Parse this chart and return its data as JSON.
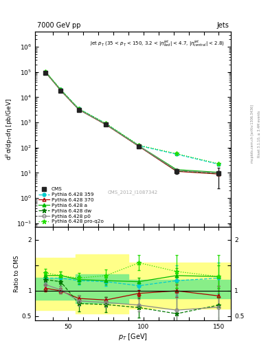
{
  "title_left": "7000 GeV pp",
  "title_right": "Jets",
  "watermark": "CMS_2012_I1087342",
  "pt_values": [
    35,
    45,
    57,
    75,
    97,
    122,
    150
  ],
  "cms_values": [
    95000.0,
    18500.0,
    3200,
    820,
    115,
    11.5,
    9.5
  ],
  "cms_yerr_lo": [
    12000.0,
    2000,
    350,
    90,
    15,
    2.5,
    7
  ],
  "cms_yerr_hi": [
    12000.0,
    2000,
    350,
    90,
    15,
    2.5,
    7
  ],
  "pythia359_values": [
    100000.0,
    20000.0,
    3500,
    900,
    120,
    55,
    22
  ],
  "pythia370_values": [
    98000.0,
    18500.0,
    3250,
    820,
    112,
    11.5,
    9.0
  ],
  "pythia_a_values": [
    101000.0,
    19500.0,
    3350,
    860,
    118,
    13.5,
    10.5
  ],
  "pythia_dw_values": [
    97000.0,
    19000.0,
    3300,
    840,
    115,
    12,
    9.5
  ],
  "pythia_p0_values": [
    99000.0,
    19200.0,
    3320,
    850,
    116,
    12.5,
    10
  ],
  "pythia_proq2o_values": [
    103000.0,
    20200.0,
    3550,
    920,
    125,
    58,
    23
  ],
  "ratio_359": [
    1.25,
    1.25,
    1.2,
    1.18,
    1.1,
    1.2,
    1.25
  ],
  "ratio_370": [
    1.05,
    1.0,
    0.85,
    0.82,
    0.95,
    1.0,
    0.9
  ],
  "ratio_a": [
    1.3,
    1.3,
    1.22,
    1.2,
    1.18,
    1.3,
    1.28
  ],
  "ratio_dw": [
    1.22,
    1.18,
    0.75,
    0.73,
    0.67,
    0.55,
    0.72
  ],
  "ratio_p0": [
    1.12,
    1.02,
    0.8,
    0.77,
    0.72,
    0.62,
    0.68
  ],
  "ratio_proq2o": [
    1.35,
    1.3,
    1.25,
    1.3,
    1.55,
    1.38,
    1.28
  ],
  "ratio_err_359": [
    0.08,
    0.08,
    0.08,
    0.08,
    0.08,
    0.3,
    0.3
  ],
  "ratio_err_370": [
    0.06,
    0.06,
    0.06,
    0.06,
    0.06,
    0.12,
    0.2
  ],
  "ratio_err_a": [
    0.08,
    0.08,
    0.08,
    0.08,
    0.08,
    0.14,
    0.22
  ],
  "ratio_err_dw": [
    0.08,
    0.08,
    0.15,
    0.15,
    0.2,
    0.5,
    0.55
  ],
  "ratio_err_p0": [
    0.08,
    0.08,
    0.1,
    0.1,
    0.12,
    0.32,
    0.42
  ],
  "ratio_err_proq2o": [
    0.08,
    0.08,
    0.1,
    0.12,
    0.15,
    0.32,
    0.42
  ],
  "color_cms": "#222222",
  "color_359": "#00CCCC",
  "color_370": "#AA0000",
  "color_a": "#00BB00",
  "color_dw": "#007700",
  "color_p0": "#888888",
  "color_proq2o": "#22DD00",
  "ylim_main": [
    0.07,
    4000000.0
  ],
  "ylim_ratio": [
    0.42,
    2.25
  ],
  "xlim": [
    28,
    158
  ]
}
